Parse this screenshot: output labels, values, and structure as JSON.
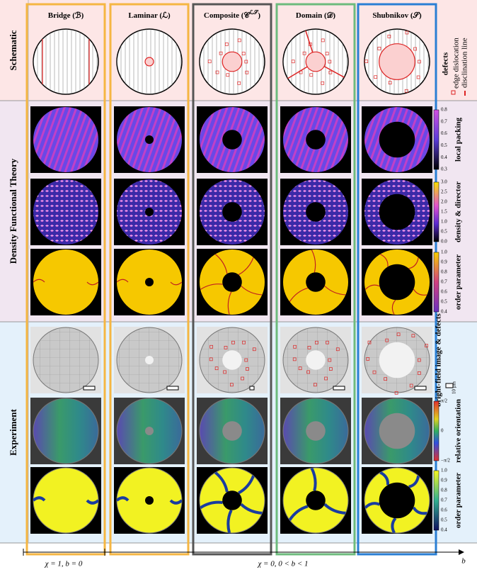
{
  "columns": [
    {
      "title": [
        "Bridge (ℬ)"
      ],
      "color": "#f5b642"
    },
    {
      "title": [
        "Laminar (ℒ)"
      ],
      "color": "#f5b642"
    },
    {
      "title": [
        "Composite (𝒞",
        "ℒ𝒮",
        ")"
      ],
      "color": "#555555"
    },
    {
      "title": [
        "Domain (𝒟)"
      ],
      "color": "#6dbb7d"
    },
    {
      "title": [
        "Shubnikov (𝒮)"
      ],
      "color": "#2a7fd4"
    }
  ],
  "sections": [
    "Schematic",
    "Density Functional Theory",
    "Experiment"
  ],
  "legend": {
    "title": "defects",
    "items": [
      "edge dislocation",
      "disclination line"
    ]
  },
  "colorbars": [
    {
      "label": "local packing",
      "ticks": [
        "0.8",
        "0.7",
        "0.6",
        "0.5",
        "0.4",
        "0.3"
      ]
    },
    {
      "label": "density & director",
      "ticks": [
        "3.0",
        "2.5",
        "2.0",
        "1.5",
        "1.0",
        "0.5",
        "0.0"
      ]
    },
    {
      "label": "order parameter",
      "ticks": [
        "1.0",
        "0.9",
        "0.8",
        "0.7",
        "0.6",
        "0.5",
        "0.4"
      ]
    },
    {
      "label": "bright-field image & defects",
      "ticks": [
        "10 μm"
      ]
    },
    {
      "label": "relative orientation",
      "ticks": [
        "π/2",
        "0",
        "−π/2"
      ]
    },
    {
      "label": "order parameter",
      "ticks": [
        "1.0",
        "0.9",
        "0.8",
        "0.7",
        "0.6",
        "0.5",
        "0.4"
      ]
    }
  ],
  "axis": {
    "segments": [
      "χ = 1, b = 0",
      "χ = 0, 0 < b < 1"
    ],
    "label": "b"
  }
}
